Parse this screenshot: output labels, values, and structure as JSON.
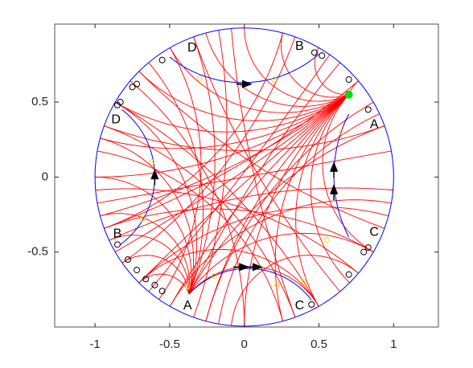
{
  "chart_data": {
    "type": "hyperbolic-disk",
    "xlim": [
      -1.27,
      1.3
    ],
    "ylim": [
      -1,
      1.02
    ],
    "xticks": [
      -1,
      -0.5,
      0,
      0.5,
      1
    ],
    "yticks": [
      -0.5,
      0,
      0.5
    ],
    "boundary_color": "#0000ff",
    "geodesic_color": "#ff0000",
    "sides": [
      {
        "x": [
          -0.37,
          0.04,
          0.45
        ],
        "y": [
          -0.78,
          -0.61,
          -0.82
        ]
      },
      {
        "x": [
          0.7,
          0.6,
          0.7
        ],
        "y": [
          -0.4,
          0,
          0.42
        ]
      },
      {
        "x": [
          -0.5,
          0,
          0.5
        ],
        "y": [
          0.8,
          0.63,
          0.82
        ]
      },
      {
        "x": [
          -0.82,
          -0.6,
          -0.83
        ],
        "y": [
          0.45,
          0,
          -0.45
        ]
      }
    ],
    "geodesics": [
      [
        120,
        235
      ],
      [
        150,
        300
      ],
      [
        100,
        250
      ],
      [
        135,
        340
      ],
      [
        160,
        20
      ],
      [
        200,
        40
      ],
      [
        215,
        70
      ],
      [
        240,
        350
      ],
      [
        255,
        30
      ],
      [
        270,
        140
      ],
      [
        290,
        160
      ],
      [
        310,
        110
      ],
      [
        330,
        200
      ],
      [
        345,
        225
      ],
      [
        10,
        190
      ],
      [
        75,
        200
      ],
      [
        95,
        290
      ],
      [
        55,
        230
      ],
      [
        25,
        260
      ],
      [
        170,
        285
      ],
      [
        185,
        320
      ],
      [
        205,
        355
      ],
      [
        225,
        300
      ],
      [
        265,
        320
      ]
    ],
    "fans": [
      {
        "x": 0.7,
        "y": 0.55,
        "angles": [
          40,
          60,
          75,
          90,
          105,
          120,
          135,
          150,
          165,
          180,
          195,
          210,
          225,
          240,
          255,
          270,
          285,
          300,
          315,
          330
        ]
      },
      {
        "x": -0.37,
        "y": -0.78,
        "angles": [
          110,
          130,
          150,
          165,
          180,
          195,
          205,
          215,
          225,
          300,
          330,
          20,
          50
        ]
      }
    ],
    "markers": [
      [
        -0.55,
        0.78
      ],
      [
        -0.72,
        0.62
      ],
      [
        -0.75,
        0.6
      ],
      [
        -0.83,
        0.5
      ],
      [
        -0.85,
        0.48
      ],
      [
        0.47,
        0.83
      ],
      [
        0.52,
        0.81
      ],
      [
        0.7,
        0.65
      ],
      [
        0.83,
        0.45
      ],
      [
        -0.85,
        -0.45
      ],
      [
        -0.78,
        -0.55
      ],
      [
        -0.72,
        -0.62
      ],
      [
        -0.66,
        -0.68
      ],
      [
        -0.6,
        -0.72
      ],
      [
        -0.55,
        -0.76
      ],
      [
        0.45,
        -0.85
      ],
      [
        0.7,
        -0.65
      ],
      [
        0.8,
        -0.5
      ],
      [
        0.83,
        -0.47
      ]
    ],
    "marker_color": "#000000",
    "yellow_markers": [
      [
        -0.38,
        -0.73
      ],
      [
        -0.2,
        -0.66
      ],
      [
        0.2,
        0.65
      ],
      [
        -0.62,
        0.1
      ],
      [
        -0.68,
        -0.28
      ],
      [
        0.22,
        -0.72
      ],
      [
        0.55,
        -0.42
      ],
      [
        0.65,
        0.3
      ],
      [
        -0.3,
        0.66
      ],
      [
        0.4,
        -0.7
      ]
    ],
    "yellow_color": "#ffd700",
    "green_point": [
      0.7,
      0.55
    ],
    "green_color": "#00e000",
    "arrows": [
      {
        "x": 0,
        "y": 0.62,
        "dx": 1,
        "dy": 0
      },
      {
        "x": -0.02,
        "y": -0.6,
        "dx": 1,
        "dy": 0
      },
      {
        "x": -0.6,
        "y": 0,
        "dx": 0,
        "dy": 1
      },
      {
        "x": 0.6,
        "y": 0.05,
        "dx": 0,
        "dy": 1
      },
      {
        "x": 0.6,
        "y": -0.1,
        "dx": 0,
        "dy": 1
      },
      {
        "x": 0.07,
        "y": -0.6,
        "dx": 1,
        "dy": 0
      }
    ],
    "labels": [
      {
        "text": "A",
        "x": -0.38,
        "y": -0.86
      },
      {
        "text": "A",
        "x": 0.87,
        "y": 0.35
      },
      {
        "text": "B",
        "x": 0.37,
        "y": 0.87
      },
      {
        "text": "B",
        "x": -0.85,
        "y": -0.38
      },
      {
        "text": "C",
        "x": 0.87,
        "y": -0.37
      },
      {
        "text": "C",
        "x": 0.37,
        "y": -0.86
      },
      {
        "text": "D",
        "x": -0.86,
        "y": 0.38
      },
      {
        "text": "D",
        "x": -0.35,
        "y": 0.86
      }
    ]
  }
}
